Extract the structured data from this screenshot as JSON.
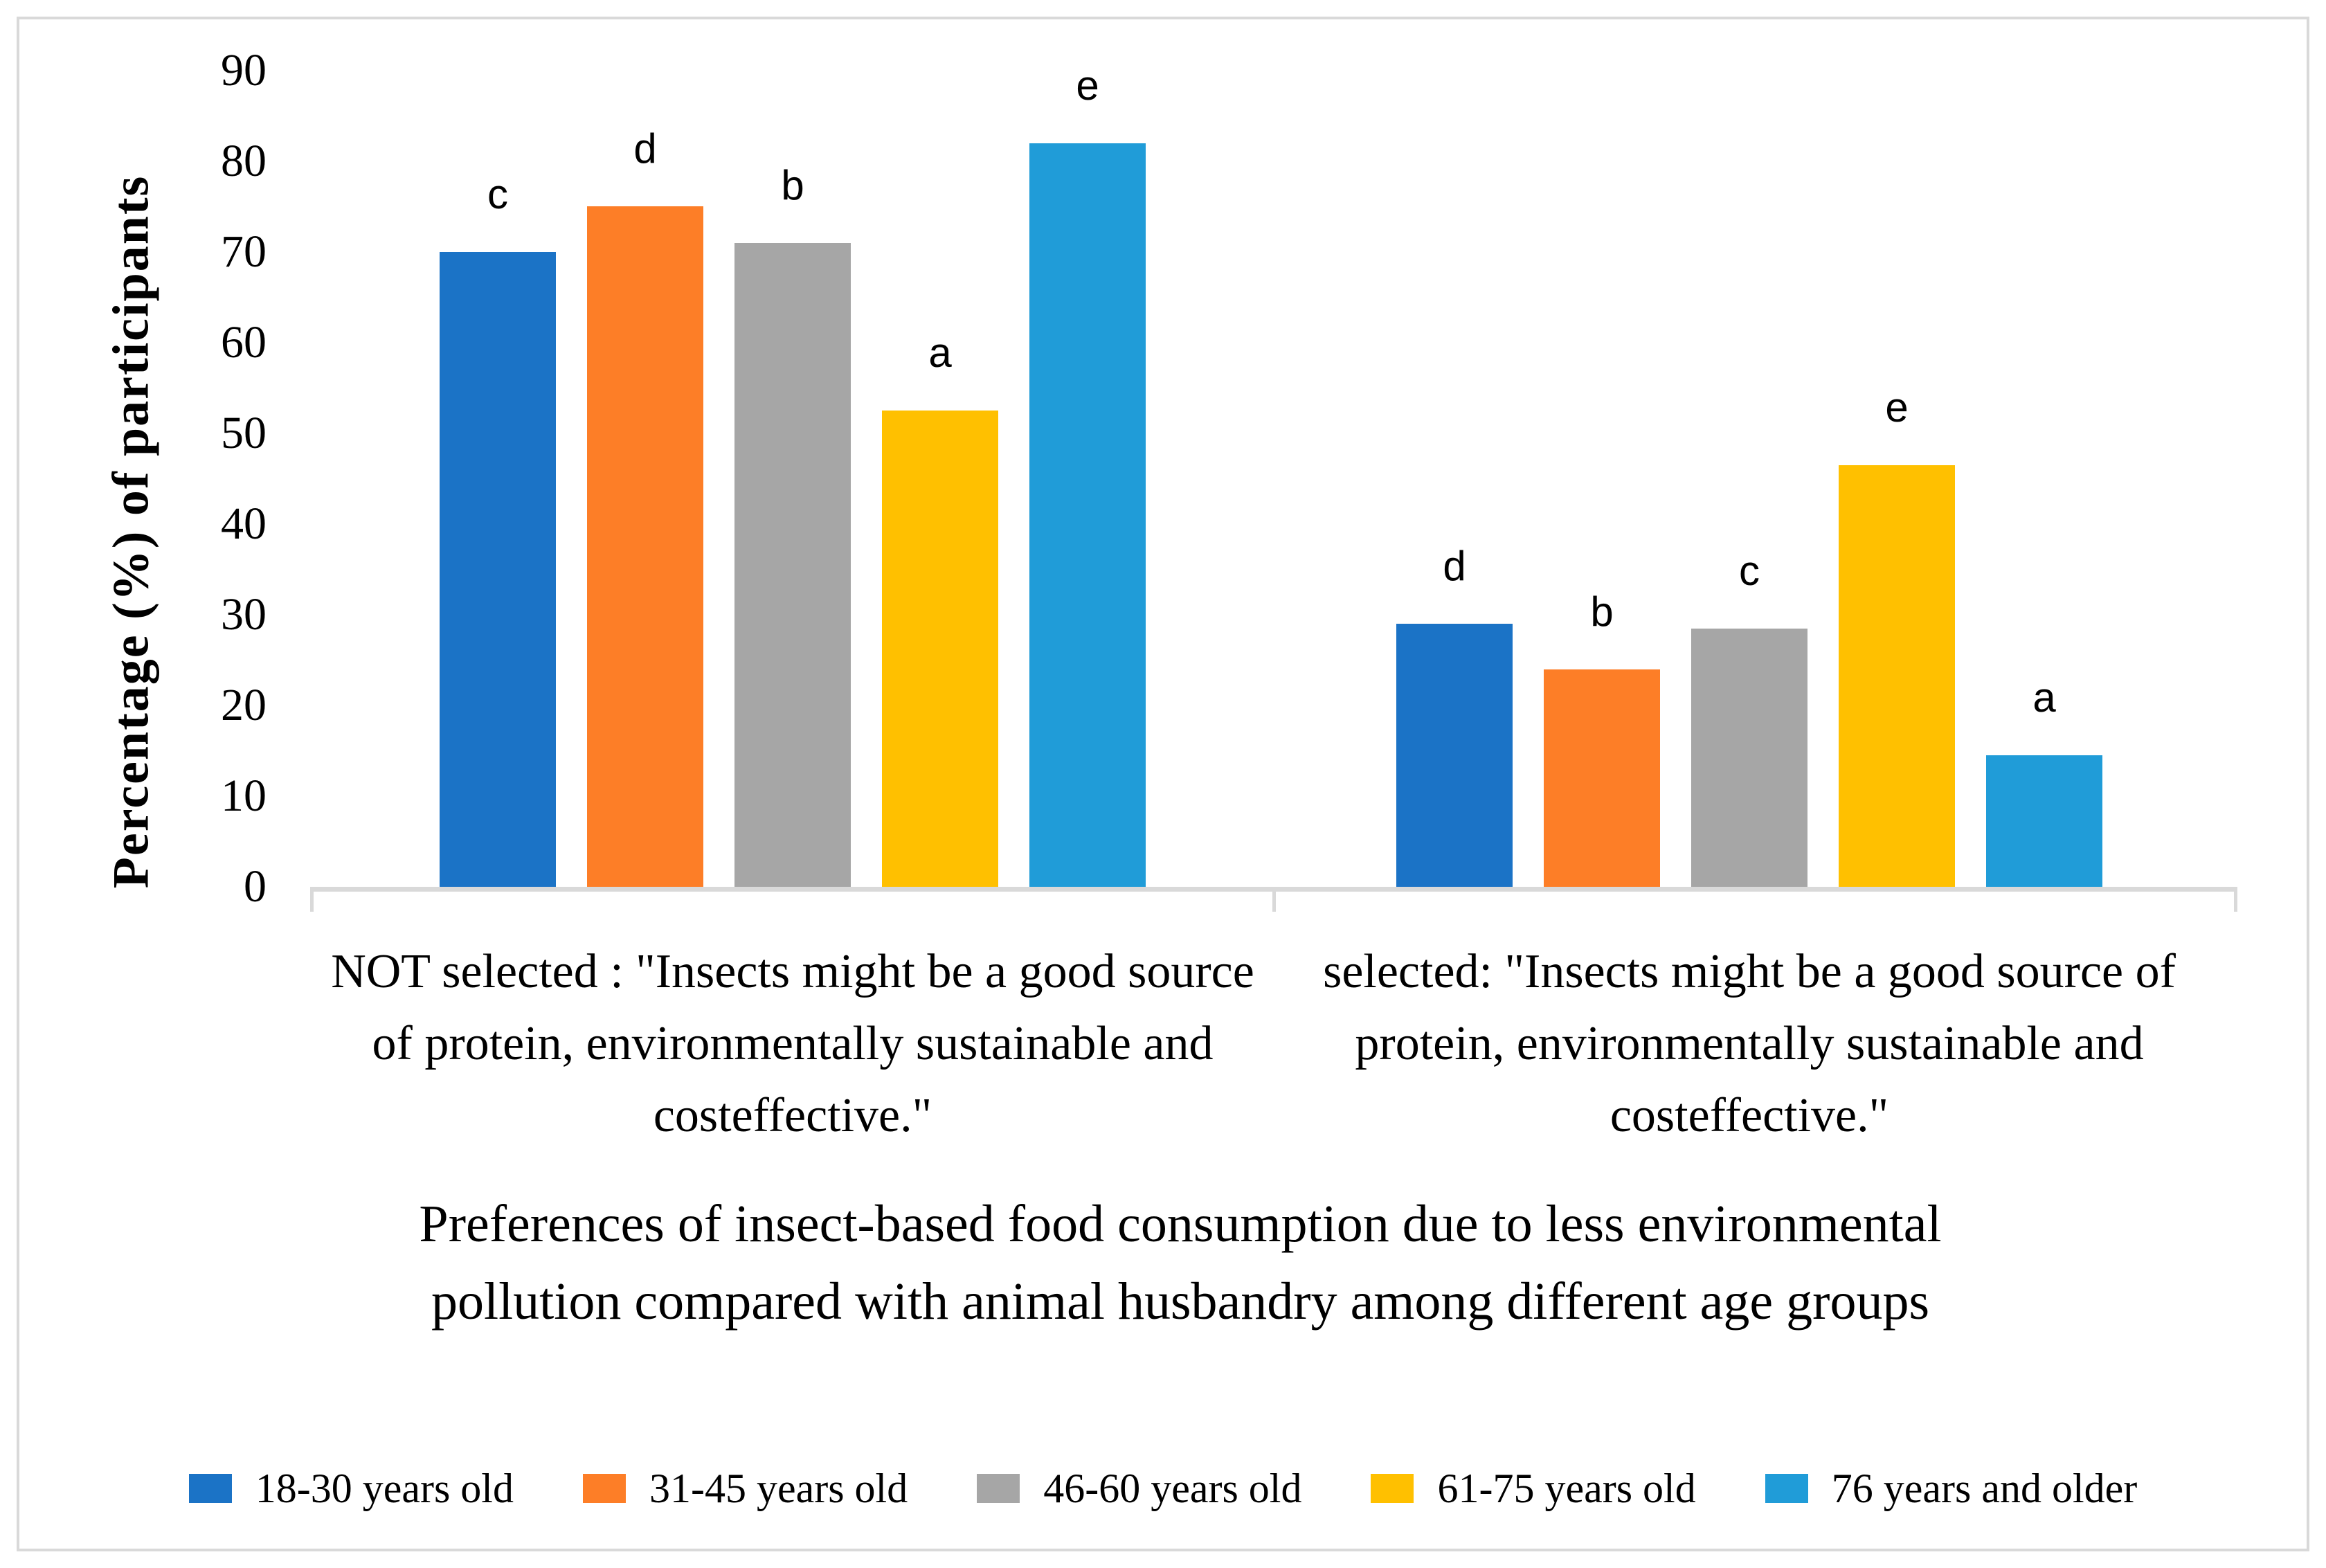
{
  "chart_data": {
    "type": "bar",
    "title": "",
    "categories": [
      "NOT selected : \"Insects might be a good source of protein, environmentally sustainable and costeffective.\"",
      "selected: \"Insects might be a good source of protein, environmentally sustainable and costeffective.\""
    ],
    "series": [
      {
        "name": "18-30 years old",
        "color": "#1B73C6",
        "values": [
          70,
          29
        ],
        "bar_labels": [
          "c",
          "d"
        ]
      },
      {
        "name": "31-45 years old",
        "color": "#FD7E27",
        "values": [
          75,
          24
        ],
        "bar_labels": [
          "d",
          "b"
        ]
      },
      {
        "name": "46-60 years old",
        "color": "#A6A6A6",
        "values": [
          71,
          28.5
        ],
        "bar_labels": [
          "b",
          "c"
        ]
      },
      {
        "name": "61-75 years old",
        "color": "#FFC000",
        "values": [
          52.5,
          46.5
        ],
        "bar_labels": [
          "a",
          "e"
        ]
      },
      {
        "name": "76 years and older",
        "color": "#209CD8",
        "values": [
          82,
          14.5
        ],
        "bar_labels": [
          "e",
          "a"
        ]
      }
    ],
    "xlabel": "Preferences of insect-based food consumption due to less environmental pollution compared with animal husbandry among different age groups",
    "ylabel": "Percentage (%) of participants",
    "ylim": [
      0,
      90
    ],
    "yticks": [
      0,
      10,
      20,
      30,
      40,
      50,
      60,
      70,
      80,
      90
    ],
    "grid": false,
    "legend_position": "bottom",
    "axis_color": "#d9d9d9"
  }
}
